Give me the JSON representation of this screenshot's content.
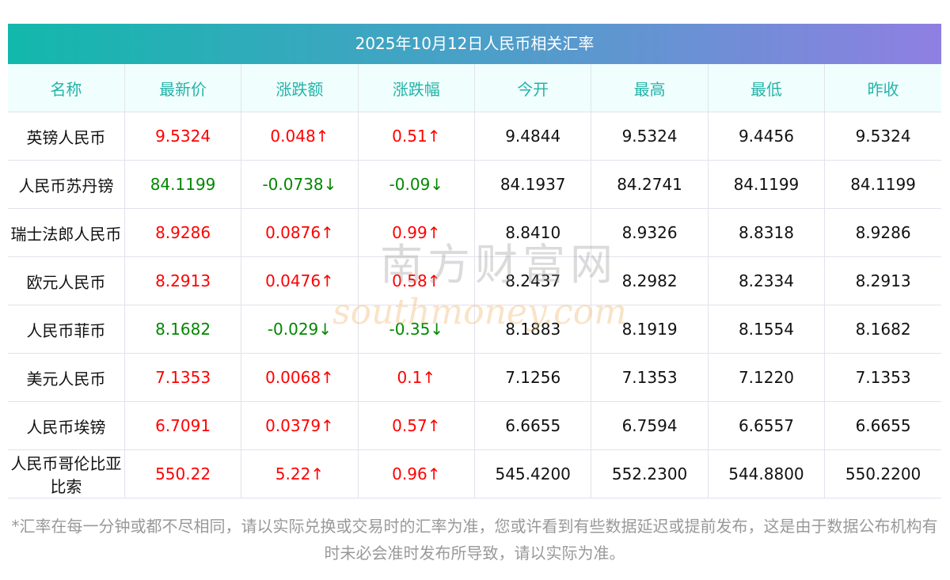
{
  "title": "2025年10月12日人民币相关汇率",
  "headers": [
    "名称",
    "最新价",
    "涨跌额",
    "涨跌幅",
    "今开",
    "最高",
    "最低",
    "昨收"
  ],
  "rows": [
    {
      "name": "英镑人民币",
      "price": "9.5324",
      "chg": "0.048↑",
      "pct": "0.51↑",
      "open": "9.4844",
      "high": "9.5324",
      "low": "9.4456",
      "prev": "9.5324",
      "dir": "up"
    },
    {
      "name": "人民币苏丹镑",
      "price": "84.1199",
      "chg": "-0.0738↓",
      "pct": "-0.09↓",
      "open": "84.1937",
      "high": "84.2741",
      "low": "84.1199",
      "prev": "84.1199",
      "dir": "down"
    },
    {
      "name": "瑞士法郎人民币",
      "price": "8.9286",
      "chg": "0.0876↑",
      "pct": "0.99↑",
      "open": "8.8410",
      "high": "8.9326",
      "low": "8.8318",
      "prev": "8.9286",
      "dir": "up"
    },
    {
      "name": "欧元人民币",
      "price": "8.2913",
      "chg": "0.0476↑",
      "pct": "0.58↑",
      "open": "8.2437",
      "high": "8.2982",
      "low": "8.2334",
      "prev": "8.2913",
      "dir": "up"
    },
    {
      "name": "人民币菲币",
      "price": "8.1682",
      "chg": "-0.029↓",
      "pct": "-0.35↓",
      "open": "8.1883",
      "high": "8.1919",
      "low": "8.1554",
      "prev": "8.1682",
      "dir": "down"
    },
    {
      "name": "美元人民币",
      "price": "7.1353",
      "chg": "0.0068↑",
      "pct": "0.1↑",
      "open": "7.1256",
      "high": "7.1353",
      "low": "7.1220",
      "prev": "7.1353",
      "dir": "up"
    },
    {
      "name": "人民币埃镑",
      "price": "6.7091",
      "chg": "0.0379↑",
      "pct": "0.57↑",
      "open": "6.6655",
      "high": "6.7594",
      "low": "6.6557",
      "prev": "6.6655",
      "dir": "up"
    },
    {
      "name": "人民币哥伦比亚比索",
      "price": "550.22",
      "chg": "5.22↑",
      "pct": "0.96↑",
      "open": "545.4200",
      "high": "552.2300",
      "low": "544.8800",
      "prev": "550.2200",
      "dir": "up"
    }
  ],
  "note": "*汇率在每一分钟或都不尽相同，请以实际兑换或交易时的汇率为准，您或许看到有些数据延迟或提前发布，这是由于数据公布机构有时未必会准时发布所导致，请以实际为准。",
  "watermark": {
    "cn": "南方财富网",
    "en": "southmoney.com"
  },
  "colors": {
    "up": "#ff0000",
    "down": "#008800",
    "header": "#25b3a8"
  }
}
